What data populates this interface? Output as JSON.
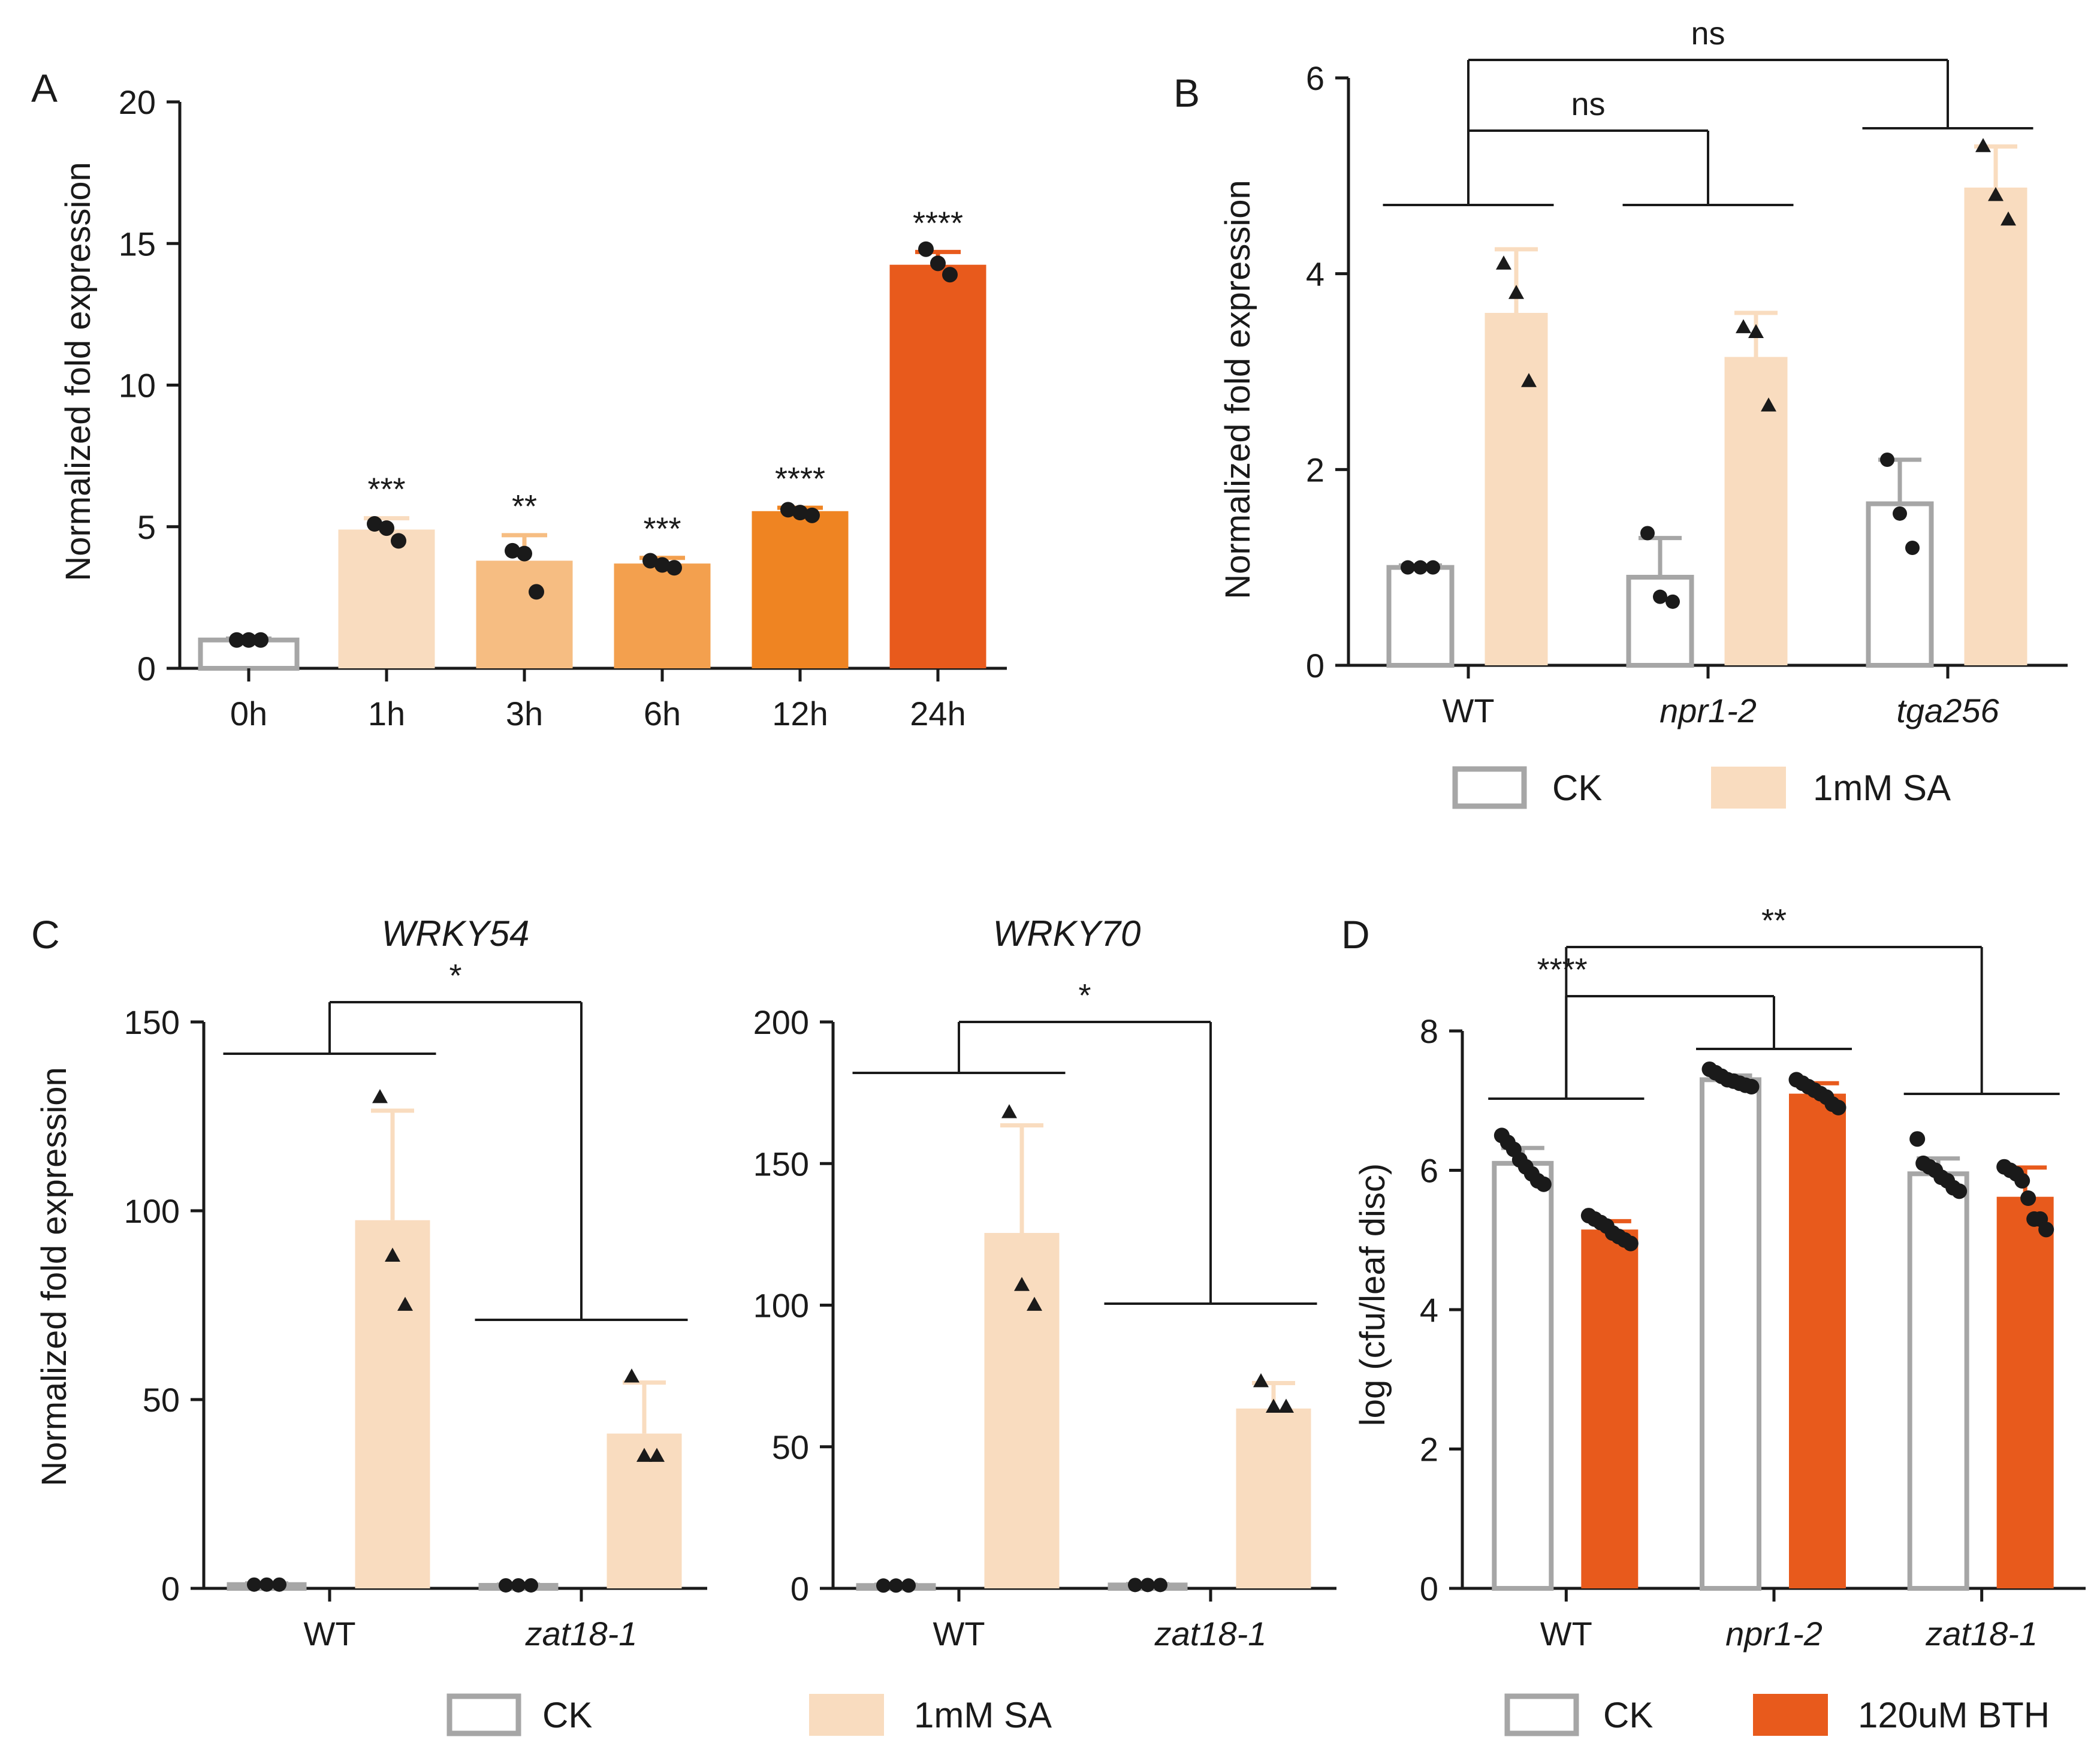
{
  "colors": {
    "ck_edge": "#a6a6a6",
    "sa": "#f9dcbf",
    "bth": "#e85a1c",
    "axis": "#1a1a1a",
    "point": "#1a1a1a",
    "timecourse": [
      "#ffffff",
      "#f9dcbf",
      "#f6bd82",
      "#f3a04e",
      "#ef8422",
      "#e85a1c"
    ]
  },
  "chart_data": [
    {
      "panel": "A",
      "type": "bar",
      "ylabel": "Normalized fold expression",
      "ylim": [
        0,
        20
      ],
      "yticks": [
        "0",
        "5",
        "10",
        "15",
        "20"
      ],
      "categories": [
        "0h",
        "1h",
        "3h",
        "6h",
        "12h",
        "24h"
      ],
      "values": [
        1.0,
        4.9,
        3.8,
        3.7,
        5.55,
        14.25
      ],
      "errors": [
        0.05,
        0.4,
        0.9,
        0.2,
        0.12,
        0.45
      ],
      "points": [
        [
          1.0,
          1.0,
          1.0
        ],
        [
          5.1,
          4.95,
          4.5
        ],
        [
          4.15,
          4.05,
          2.7
        ],
        [
          3.8,
          3.65,
          3.55
        ],
        [
          5.6,
          5.5,
          5.4
        ],
        [
          14.8,
          14.3,
          13.9
        ]
      ],
      "significance": [
        "",
        "***",
        "**",
        "***",
        "****",
        "****"
      ]
    },
    {
      "panel": "B",
      "type": "bar",
      "ylabel": "Normalized fold expression",
      "ylim": [
        0,
        6
      ],
      "yticks": [
        "0",
        "2",
        "4",
        "6"
      ],
      "categories": [
        "WT",
        "npr1-2",
        "tga256"
      ],
      "series": [
        {
          "name": "CK",
          "values": [
            1.0,
            0.9,
            1.65
          ],
          "errors": [
            0.02,
            0.4,
            0.45
          ],
          "points": [
            [
              1.0,
              1.0,
              1.0
            ],
            [
              1.35,
              0.7,
              0.65
            ],
            [
              2.1,
              1.55,
              1.2
            ]
          ]
        },
        {
          "name": "1mM SA",
          "values": [
            3.6,
            3.15,
            4.88
          ],
          "errors": [
            0.65,
            0.45,
            0.42
          ],
          "points": [
            [
              4.1,
              3.8,
              2.9
            ],
            [
              3.45,
              3.4,
              2.65
            ],
            [
              5.3,
              4.8,
              4.55
            ]
          ]
        }
      ],
      "brackets": [
        {
          "from": 0,
          "to": 1,
          "label": "ns"
        },
        {
          "from": 0,
          "to": 2,
          "label": "ns"
        }
      ],
      "legend": [
        "CK",
        "1mM SA"
      ]
    },
    {
      "panel": "C",
      "type": "bar",
      "title": "WRKY54",
      "ylabel": "Normalized fold expression",
      "ylim": [
        0,
        150
      ],
      "yticks": [
        "0",
        "50",
        "100",
        "150"
      ],
      "categories": [
        "WT",
        "zat18-1"
      ],
      "series": [
        {
          "name": "CK",
          "values": [
            1.0,
            0.8
          ],
          "errors": [
            0.3,
            0.2
          ],
          "points": [
            [
              1,
              1,
              1
            ],
            [
              0.8,
              0.8,
              0.8
            ]
          ]
        },
        {
          "name": "1mM SA",
          "values": [
            97.5,
            41.0
          ],
          "errors": [
            29.0,
            13.5
          ],
          "points": [
            [
              130,
              88,
              75
            ],
            [
              56,
              35,
              35
            ]
          ]
        }
      ],
      "brackets": [
        {
          "from": 0,
          "to": 1,
          "label": "*"
        }
      ]
    },
    {
      "panel": "C",
      "type": "bar",
      "title": "WRKY70",
      "ylim": [
        0,
        200
      ],
      "yticks": [
        "0",
        "50",
        "100",
        "150",
        "200"
      ],
      "categories": [
        "WT",
        "zat18-1"
      ],
      "series": [
        {
          "name": "CK",
          "values": [
            1.0,
            1.2
          ],
          "errors": [
            0.3,
            0.3
          ],
          "points": [
            [
              1,
              1,
              1
            ],
            [
              1.2,
              1.2,
              1.2
            ]
          ]
        },
        {
          "name": "1mM SA",
          "values": [
            125.5,
            63.5
          ],
          "errors": [
            38.0,
            9.0
          ],
          "points": [
            [
              168,
              107,
              100
            ],
            [
              73,
              64,
              64
            ]
          ]
        }
      ],
      "brackets": [
        {
          "from": 0,
          "to": 1,
          "label": "*"
        }
      ],
      "legend": [
        "CK",
        "1mM SA"
      ]
    },
    {
      "panel": "D",
      "type": "bar",
      "ylabel": "log (cfu/leaf disc)",
      "ylim": [
        0,
        8
      ],
      "yticks": [
        "0",
        "2",
        "4",
        "6",
        "8"
      ],
      "categories": [
        "WT",
        "npr1-2",
        "zat18-1"
      ],
      "series": [
        {
          "name": "CK",
          "values": [
            6.1,
            7.3,
            5.95
          ],
          "errors": [
            0.22,
            0.06,
            0.22
          ],
          "points": [
            [
              6.5,
              6.4,
              6.3,
              6.15,
              6.05,
              5.95,
              5.85,
              5.8
            ],
            [
              7.45,
              7.4,
              7.35,
              7.3,
              7.28,
              7.25,
              7.22,
              7.2
            ],
            [
              6.45,
              6.1,
              6.05,
              6.0,
              5.9,
              5.85,
              5.75,
              5.7
            ]
          ]
        },
        {
          "name": "120uM BTH",
          "values": [
            5.15,
            7.1,
            5.62
          ],
          "errors": [
            0.12,
            0.15,
            0.42
          ],
          "points": [
            [
              5.35,
              5.3,
              5.25,
              5.2,
              5.1,
              5.05,
              5.0,
              4.95
            ],
            [
              7.3,
              7.25,
              7.2,
              7.15,
              7.1,
              7.05,
              6.95,
              6.9
            ],
            [
              6.05,
              6.0,
              5.95,
              5.85,
              5.6,
              5.3,
              5.3,
              5.15
            ]
          ]
        }
      ],
      "brackets": [
        {
          "from": 0,
          "to": 1,
          "label": "****"
        },
        {
          "from": 0,
          "to": 2,
          "label": "**"
        }
      ],
      "legend": [
        "CK",
        "120uM BTH"
      ]
    }
  ]
}
